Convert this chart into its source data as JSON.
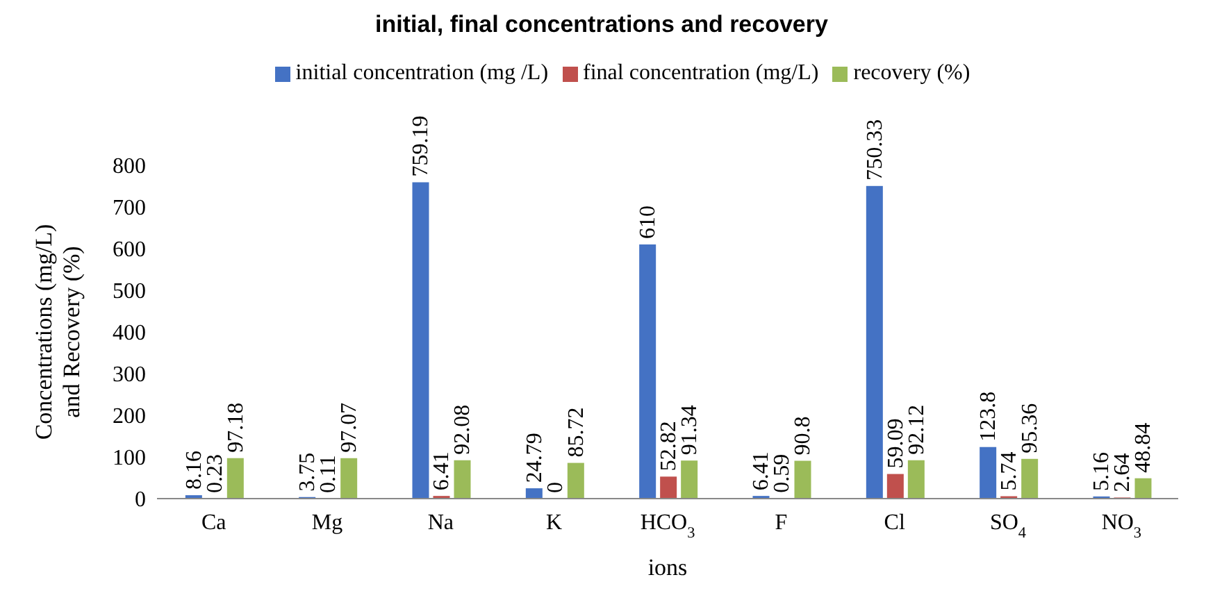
{
  "chart_data": {
    "type": "bar",
    "title": "initial, final concentrations and recovery",
    "xlabel": "ions",
    "ylabel": "Concentrations  (mg/L) and Recovery  (%)",
    "categories": [
      "Ca",
      "Mg",
      "Na",
      "K",
      "HCO$_{3}$",
      "F",
      "Cl",
      "SO$_{4}$",
      "NO$_{3}$"
    ],
    "series": [
      {
        "name": "initial concentration (mg /L)",
        "color": "#4472c4",
        "values": [
          8.16,
          3.75,
          759.19,
          24.79,
          610,
          6.41,
          750.33,
          123.8,
          5.16
        ]
      },
      {
        "name": "final concentration (mg/L)",
        "color": "#c0504d",
        "values": [
          0.23,
          0.11,
          6.41,
          0,
          52.82,
          0.59,
          59.09,
          5.74,
          2.64
        ]
      },
      {
        "name": "recovery  (%)",
        "color": "#9bbb59",
        "values": [
          97.18,
          97.07,
          92.08,
          85.72,
          91.34,
          90.8,
          92.12,
          95.36,
          48.84
        ]
      }
    ],
    "ylim": [
      0,
      800
    ],
    "yticks": [
      0,
      100,
      200,
      300,
      400,
      500,
      600,
      700,
      800
    ],
    "grid": false,
    "legend": "top",
    "data_labels": true
  }
}
